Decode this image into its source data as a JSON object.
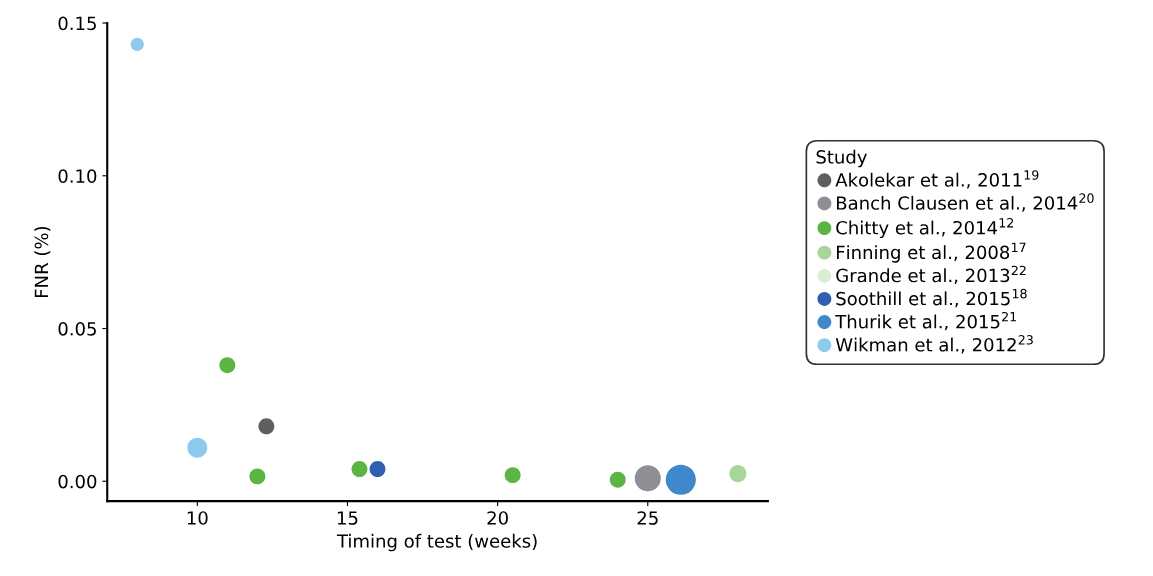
{
  "chart_data": {
    "type": "bubble",
    "xlabel": "Timing of test (weeks)",
    "ylabel": "FNR (%)",
    "legend_title": "Study",
    "legend": "right",
    "grid": false,
    "marker": "circle",
    "xlim": [
      7,
      29
    ],
    "xticks": [
      10,
      15,
      20,
      25
    ],
    "ylim": [
      -0.0065,
      0.15
    ],
    "yticks": [
      {
        "value": 0,
        "label": "0.00"
      },
      {
        "value": 0.05,
        "label": "0.05"
      },
      {
        "value": 0.1,
        "label": "0.10"
      },
      {
        "value": 0.15,
        "label": "0.15"
      }
    ],
    "series": [
      {
        "name": "Akolekar et al., 2011$^{19}$",
        "color": "#5f5f5f",
        "x": [
          12.3
        ],
        "values": [
          0.018
        ],
        "sizes": [
          0.28
        ]
      },
      {
        "name": "Banch Clausen et al., 2014$^{20}$",
        "color": "#8e8f93",
        "x": [
          25
        ],
        "values": [
          0.001
        ],
        "sizes": [
          0.75
        ]
      },
      {
        "name": "Chitty et al., 2014$^{12}$",
        "color": "#5ab543",
        "x": [
          11,
          12,
          15.4,
          20.5,
          24
        ],
        "values": [
          0.038,
          0.0016,
          0.004,
          0.002,
          0.0005
        ],
        "sizes": [
          0.28,
          0.28,
          0.28,
          0.28,
          0.28
        ]
      },
      {
        "name": "Finning et al., 2008$^{17}$",
        "color": "#a8d59a",
        "x": [
          28
        ],
        "values": [
          0.0025
        ],
        "sizes": [
          0.32
        ]
      },
      {
        "name": "Grande et al., 2013$^{22}$",
        "color": "#d9eed3"
      },
      {
        "name": "Soothill et al., 2015$^{18}$",
        "color": "#2f5fae",
        "x": [
          16
        ],
        "values": [
          0.004
        ],
        "sizes": [
          0.28
        ]
      },
      {
        "name": "Thurik et al., 2015$^{21}$",
        "color": "#3f88cc",
        "x": [
          26.1
        ],
        "values": [
          0.0005
        ],
        "sizes": [
          1
        ]
      },
      {
        "name": "Wikman et al., 2012$^{23}$",
        "color": "#8ec9ee",
        "x": [
          8,
          10
        ],
        "values": [
          0.143,
          0.011
        ],
        "sizes": [
          0.19,
          0.44
        ]
      }
    ]
  }
}
